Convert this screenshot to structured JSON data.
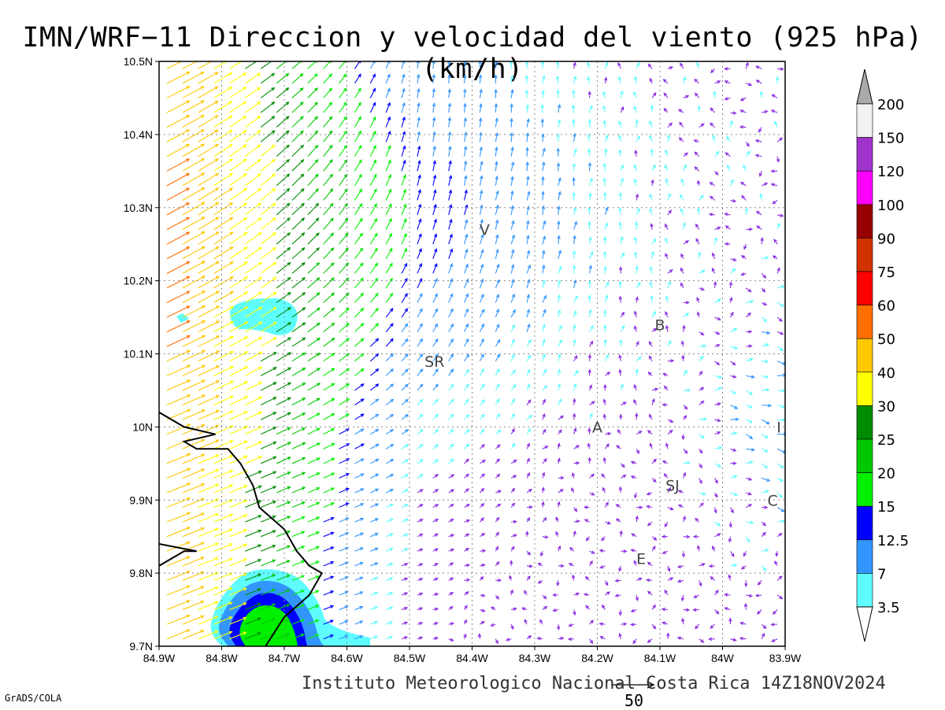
{
  "title": "IMN/WRF−11 Direccion y velocidad del viento (925 hPa)(km/h)",
  "footer": "Instituto Meteorologico Nacional Costa Rica 14Z18NOV2024",
  "credit": "GrADS/COLA",
  "reference_vector": {
    "value": "50",
    "speed": 50
  },
  "map": {
    "lon_range": [
      -84.9,
      -83.9
    ],
    "lat_range": [
      9.7,
      10.5
    ],
    "grid": "dotted",
    "lon_ticks": [
      "84.9W",
      "84.8W",
      "84.7W",
      "84.6W",
      "84.5W",
      "84.4W",
      "84.3W",
      "84.2W",
      "84.1W",
      "84W",
      "83.9W"
    ],
    "lat_ticks": [
      "9.7N",
      "9.8N",
      "9.9N",
      "10N",
      "10.1N",
      "10.2N",
      "10.3N",
      "10.4N",
      "10.5N"
    ],
    "places": [
      {
        "label": "V",
        "lon": -84.38,
        "lat": 10.27
      },
      {
        "label": "SR",
        "lon": -84.46,
        "lat": 10.09
      },
      {
        "label": "B",
        "lon": -84.1,
        "lat": 10.14
      },
      {
        "label": "A",
        "lon": -84.2,
        "lat": 10.0
      },
      {
        "label": "SJ",
        "lon": -84.08,
        "lat": 9.92
      },
      {
        "label": "C",
        "lon": -83.92,
        "lat": 9.9
      },
      {
        "label": "E",
        "lon": -84.13,
        "lat": 9.82
      },
      {
        "label": "I",
        "lon": -83.91,
        "lat": 10.0
      }
    ],
    "coastline": [
      [
        -84.9,
        10.02
      ],
      [
        -84.86,
        10.0
      ],
      [
        -84.81,
        9.99
      ],
      [
        -84.86,
        9.98
      ],
      [
        -84.84,
        9.97
      ],
      [
        -84.79,
        9.97
      ],
      [
        -84.77,
        9.95
      ],
      [
        -84.75,
        9.92
      ],
      [
        -84.74,
        9.89
      ],
      [
        -84.7,
        9.86
      ],
      [
        -84.68,
        9.83
      ],
      [
        -84.66,
        9.81
      ],
      [
        -84.64,
        9.8
      ],
      [
        -84.66,
        9.77
      ],
      [
        -84.7,
        9.74
      ],
      [
        -84.73,
        9.7
      ]
    ],
    "coastline2": [
      [
        -84.9,
        9.81
      ],
      [
        -84.86,
        9.83
      ],
      [
        -84.84,
        9.83
      ],
      [
        -84.9,
        9.84
      ]
    ]
  },
  "colorbar": {
    "labels": [
      "3.5",
      "7",
      "12.5",
      "15",
      "20",
      "25",
      "30",
      "40",
      "50",
      "60",
      "75",
      "90",
      "100",
      "120",
      "150",
      "200"
    ],
    "colors": [
      "#5ffcff",
      "#3296ff",
      "#0000ff",
      "#00f000",
      "#00c800",
      "#008c00",
      "#ffff00",
      "#ffc800",
      "#ff6e00",
      "#ff0000",
      "#d23200",
      "#960000",
      "#ff00ff",
      "#a033cc",
      "#f2f2f2"
    ],
    "over_color": "#aaaaaa",
    "under_color": "#ffffff"
  },
  "shaded_areas": [
    {
      "level": "3.5-7",
      "color": "#5ffcff"
    },
    {
      "level": "7-12.5",
      "color": "#3296ff"
    },
    {
      "level": "12.5-15",
      "color": "#0000ff"
    },
    {
      "level": "15-20",
      "color": "#00f000"
    }
  ]
}
